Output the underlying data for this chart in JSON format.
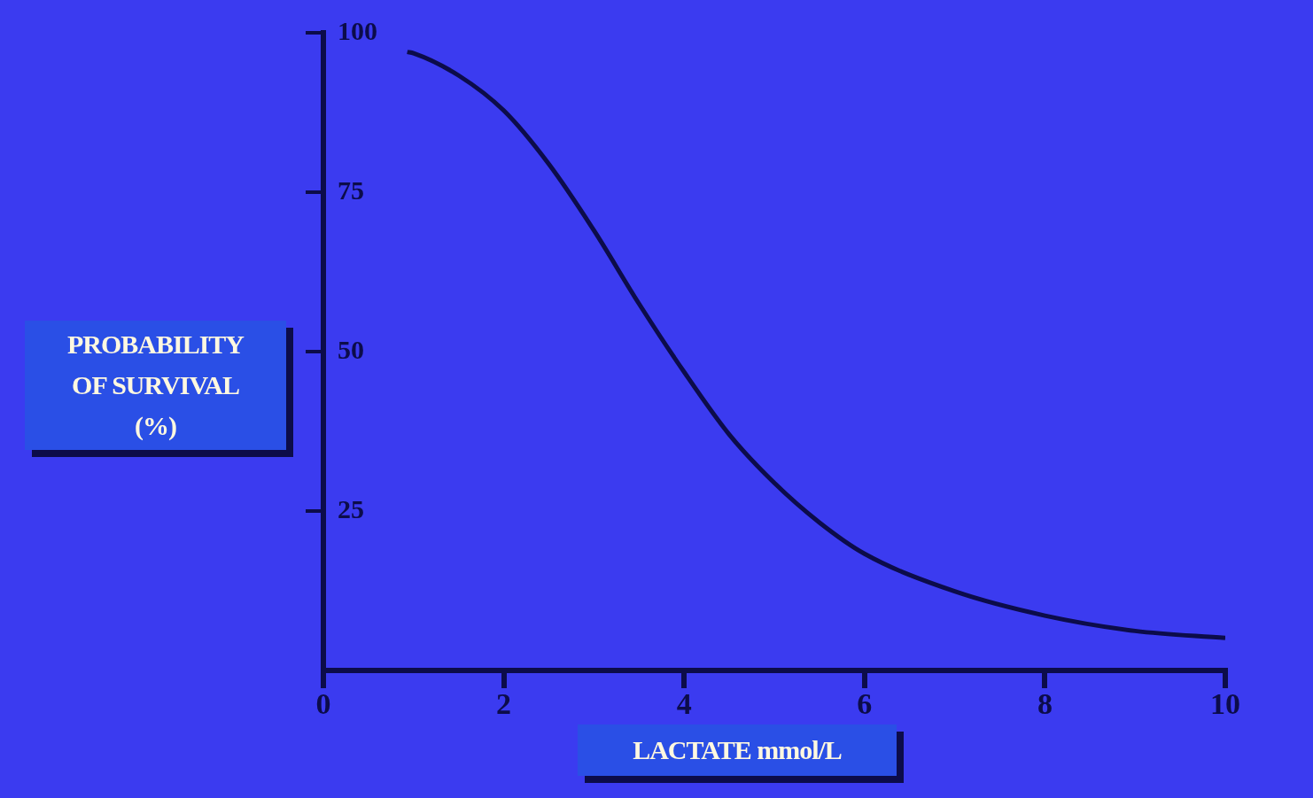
{
  "chart_data": {
    "type": "line",
    "xlabel": "LACTATE mmol/L",
    "ylabel": "PROBABILITY OF SURVIVAL (%)",
    "series": [
      {
        "color": "#0c0c4a",
        "x": [
          0.93,
          1,
          1.5,
          2,
          2.5,
          3,
          3.5,
          4,
          4.5,
          5,
          5.5,
          6,
          7,
          8,
          9,
          10
        ],
        "values": [
          97,
          96.8,
          93.3,
          87.8,
          79.4,
          69,
          57.5,
          46.8,
          37,
          29.4,
          23.2,
          18.3,
          12.4,
          8.6,
          6.2,
          5.1
        ]
      }
    ],
    "xlim": [
      0,
      10
    ],
    "xticks": [
      0,
      2,
      4,
      6,
      8,
      10
    ],
    "ylim": [
      0,
      100
    ],
    "yticks": [
      25,
      50,
      75,
      100
    ],
    "grid": false,
    "legend": false,
    "marker": "none",
    "line_style": "solid"
  }
}
